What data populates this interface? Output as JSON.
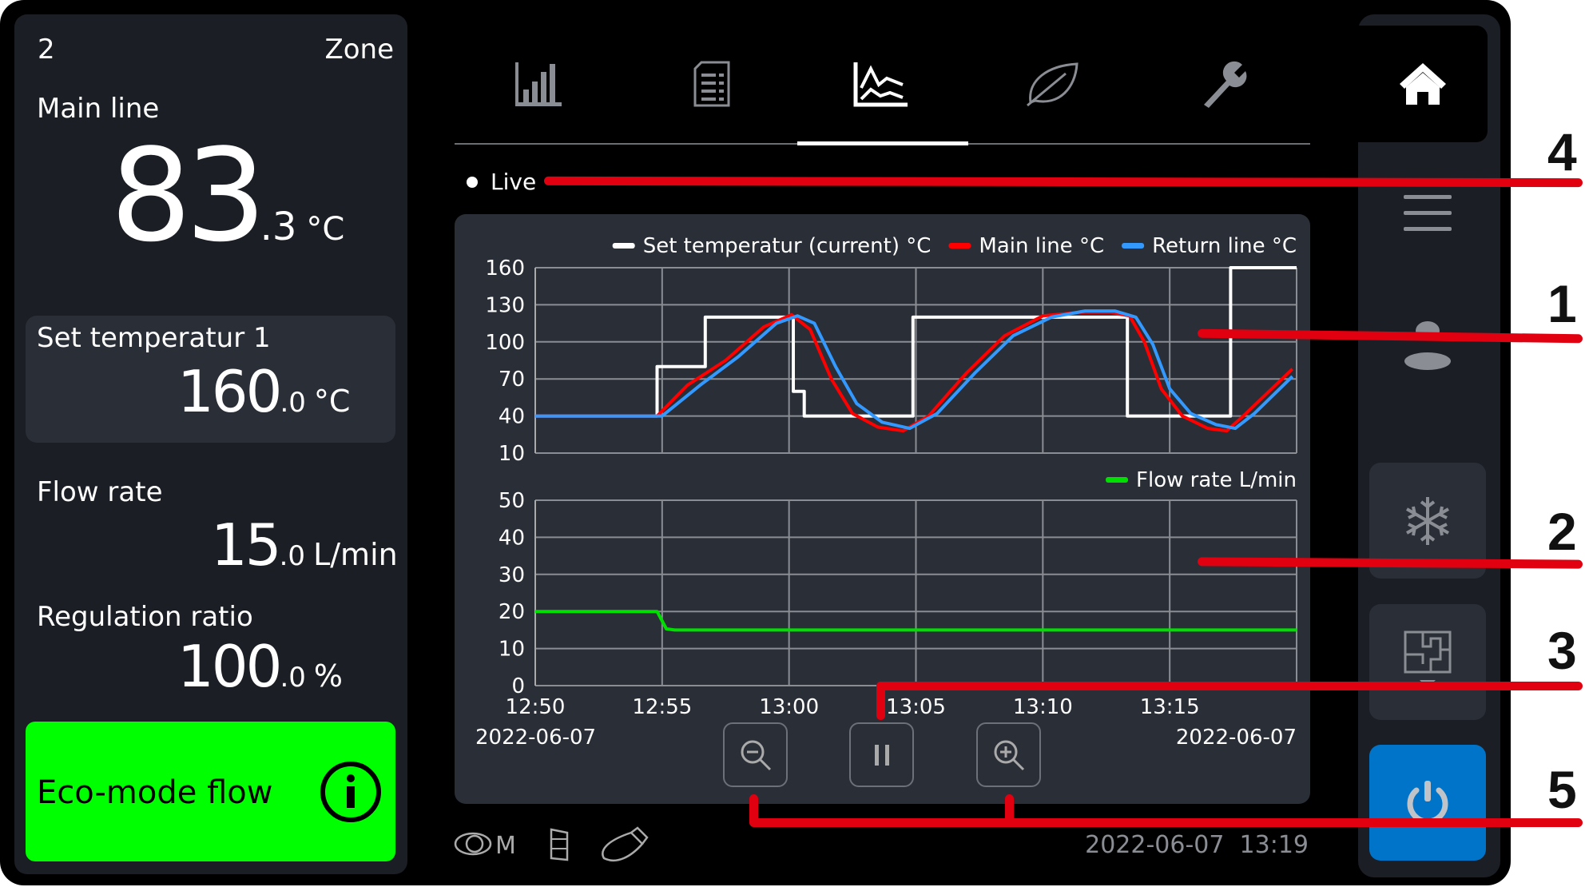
{
  "left_panel": {
    "zone_number": "2",
    "zone_label": "Zone",
    "main_line": {
      "label": "Main line",
      "int": "83",
      "dec": ".3",
      "unit": "°C"
    },
    "set_temperature": {
      "label": "Set temperatur 1",
      "int": "160",
      "dec": ".0",
      "unit": "°C"
    },
    "flow_rate": {
      "label": "Flow rate",
      "int": "15",
      "dec": ".0",
      "unit": "L/min"
    },
    "regulation_ratio": {
      "label": "Regulation ratio",
      "int": "100",
      "dec": ".0",
      "unit": "%"
    },
    "eco_mode": {
      "label": "Eco-mode flow",
      "icon": "info-icon",
      "color": "#00ff00"
    }
  },
  "tabs": [
    {
      "icon": "bar-chart-icon",
      "active": false
    },
    {
      "icon": "document-icon",
      "active": false
    },
    {
      "icon": "line-chart-icon",
      "active": true
    },
    {
      "icon": "leaf-icon",
      "active": false
    },
    {
      "icon": "wrench-icon",
      "active": false
    }
  ],
  "live_label": "Live",
  "chart_data": [
    {
      "type": "line",
      "xlim": [
        "12:50",
        "13:20"
      ],
      "ylim": [
        10,
        160
      ],
      "yticks": [
        "160",
        "130",
        "100",
        "70",
        "40",
        "10"
      ],
      "grid": true,
      "legend": "top-right",
      "series": [
        {
          "name": "Set temperatur (current) °C",
          "color": "#ffffff",
          "step": true,
          "points": [
            [
              "12:50:00",
              40
            ],
            [
              "12:54:48",
              40
            ],
            [
              "12:54:48",
              80
            ],
            [
              "12:56:42",
              80
            ],
            [
              "12:56:42",
              120
            ],
            [
              "13:00:10",
              120
            ],
            [
              "13:00:10",
              60
            ],
            [
              "13:00:36",
              60
            ],
            [
              "13:00:36",
              40
            ],
            [
              "13:04:53",
              40
            ],
            [
              "13:04:53",
              120
            ],
            [
              "13:13:20",
              120
            ],
            [
              "13:13:20",
              40
            ],
            [
              "13:17:24",
              40
            ],
            [
              "13:17:24",
              160
            ],
            [
              "13:20:00",
              160
            ]
          ]
        },
        {
          "name": "Main line °C",
          "color": "#ff0000",
          "points": [
            [
              "12:50:00",
              40
            ],
            [
              "12:54:48",
              40
            ],
            [
              "12:56:00",
              65
            ],
            [
              "12:57:30",
              85
            ],
            [
              "12:59:00",
              112
            ],
            [
              "13:00:06",
              122
            ],
            [
              "13:00:50",
              110
            ],
            [
              "13:01:40",
              70
            ],
            [
              "13:02:30",
              42
            ],
            [
              "13:03:30",
              31
            ],
            [
              "13:04:30",
              28
            ],
            [
              "13:05:30",
              40
            ],
            [
              "13:07:00",
              75
            ],
            [
              "13:08:30",
              105
            ],
            [
              "13:10:00",
              121
            ],
            [
              "13:11:30",
              124
            ],
            [
              "13:12:40",
              124
            ],
            [
              "13:13:25",
              121
            ],
            [
              "13:14:00",
              100
            ],
            [
              "13:14:40",
              62
            ],
            [
              "13:15:30",
              40
            ],
            [
              "13:16:30",
              30
            ],
            [
              "13:17:15",
              28
            ],
            [
              "13:18:00",
              42
            ],
            [
              "13:19:50",
              78
            ]
          ]
        },
        {
          "name": "Return line °C",
          "color": "#3399ff",
          "points": [
            [
              "12:50:00",
              40
            ],
            [
              "12:55:00",
              40
            ],
            [
              "12:56:30",
              65
            ],
            [
              "12:58:00",
              88
            ],
            [
              "12:59:30",
              115
            ],
            [
              "13:00:20",
              121
            ],
            [
              "13:01:00",
              115
            ],
            [
              "13:01:50",
              80
            ],
            [
              "13:02:40",
              50
            ],
            [
              "13:03:40",
              35
            ],
            [
              "13:04:45",
              30
            ],
            [
              "13:05:50",
              42
            ],
            [
              "13:07:20",
              75
            ],
            [
              "13:08:50",
              105
            ],
            [
              "13:10:20",
              120
            ],
            [
              "13:11:40",
              125
            ],
            [
              "13:12:50",
              125
            ],
            [
              "13:13:40",
              120
            ],
            [
              "13:14:20",
              98
            ],
            [
              "13:15:00",
              62
            ],
            [
              "13:15:50",
              42
            ],
            [
              "13:16:50",
              33
            ],
            [
              "13:17:35",
              30
            ],
            [
              "13:18:20",
              42
            ],
            [
              "13:19:50",
              72
            ]
          ]
        }
      ]
    },
    {
      "type": "line",
      "xlim": [
        "12:50",
        "13:20"
      ],
      "ylim": [
        0,
        50
      ],
      "yticks": [
        "50",
        "40",
        "30",
        "20",
        "10",
        "0"
      ],
      "xticks": [
        "12:50",
        "12:55",
        "13:00",
        "13:05",
        "13:10",
        "13:15"
      ],
      "x_date_left": "2022-06-07",
      "x_date_right": "2022-06-07",
      "grid": true,
      "legend": "top-right",
      "series": [
        {
          "name": "Flow rate L/min",
          "color": "#00e000",
          "points": [
            [
              "12:50:00",
              20
            ],
            [
              "12:54:48",
              20
            ],
            [
              "12:55:10",
              15.3
            ],
            [
              "12:55:30",
              15
            ],
            [
              "13:20:00",
              15
            ]
          ]
        }
      ]
    }
  ],
  "chart_controls": {
    "zoom_out": "zoom-out-icon",
    "pause": "pause-icon",
    "zoom_in": "zoom-in-icon"
  },
  "status_bar": {
    "icons": [
      "eye-m-icon",
      "battery-icon",
      "usb-stick-icon"
    ],
    "datetime": "2022-06-07  13:19"
  },
  "sidebar": {
    "icons": [
      "home-icon",
      "menu-icon",
      "user-icon",
      "snowflake-icon",
      "floor-plan-icon",
      "power-icon"
    ],
    "power_color": "#0074c8"
  },
  "callouts": [
    "4",
    "1",
    "2",
    "3",
    "5"
  ]
}
